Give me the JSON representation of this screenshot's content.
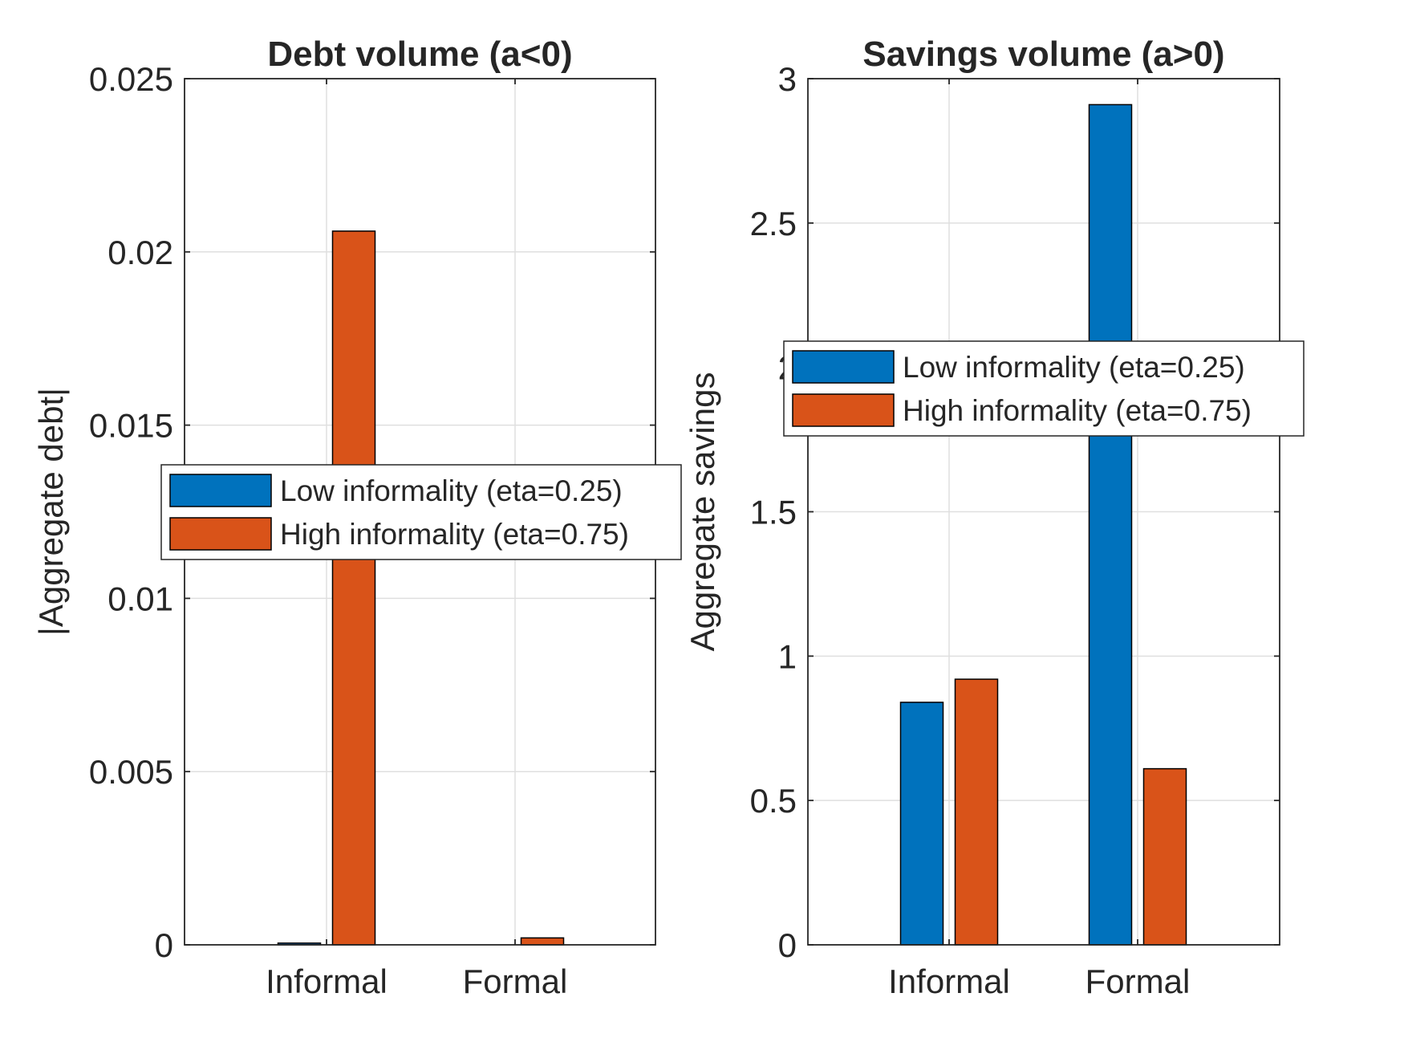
{
  "chart_data": [
    {
      "type": "bar",
      "title": "Debt volume (a<0)",
      "xlabel": "",
      "ylabel": "|Aggregate debt|",
      "categories": [
        "Informal",
        "Formal"
      ],
      "series": [
        {
          "name": "Low informality (eta=0.25)",
          "values": [
            5e-05,
            0.0
          ]
        },
        {
          "name": "High informality (eta=0.75)",
          "values": [
            0.0206,
            0.0002
          ]
        }
      ],
      "ylim": [
        0,
        0.025
      ],
      "yticks": [
        0,
        0.005,
        0.01,
        0.015,
        0.02,
        0.025
      ],
      "ytick_labels": [
        "0",
        "0.005",
        "0.01",
        "0.015",
        "0.02",
        "0.025"
      ],
      "grid": true,
      "legend_position": "center-right"
    },
    {
      "type": "bar",
      "title": "Savings volume (a>0)",
      "xlabel": "",
      "ylabel": "Aggregate savings",
      "categories": [
        "Informal",
        "Formal"
      ],
      "series": [
        {
          "name": "Low informality (eta=0.25)",
          "values": [
            0.84,
            2.91
          ]
        },
        {
          "name": "High informality (eta=0.75)",
          "values": [
            0.92,
            0.61
          ]
        }
      ],
      "ylim": [
        0,
        3
      ],
      "yticks": [
        0,
        0.5,
        1,
        1.5,
        2,
        2.5,
        3
      ],
      "ytick_labels": [
        "0",
        "0.5",
        "1",
        "1.5",
        "2",
        "2.5",
        "3"
      ],
      "grid": true,
      "legend_position": "upper-center"
    }
  ],
  "colors": {
    "low": "#0072BD",
    "high": "#D95319",
    "axis": "#262626",
    "grid": "#DFDFDF"
  }
}
